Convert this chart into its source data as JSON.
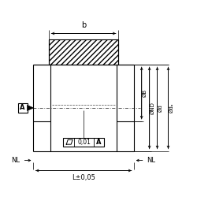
{
  "bg_color": "#ffffff",
  "line_color": "#000000",
  "fig_w": 2.5,
  "fig_h": 2.5,
  "dpi": 100,
  "label_b": "b",
  "label_NL": "NL",
  "label_L": "L±0,05",
  "label_flatness": "0,01",
  "label_A": "A",
  "label_phiB": "ØB",
  "label_phiND": "ØND",
  "label_phid": "Ød",
  "label_phida": "Ødₐ"
}
